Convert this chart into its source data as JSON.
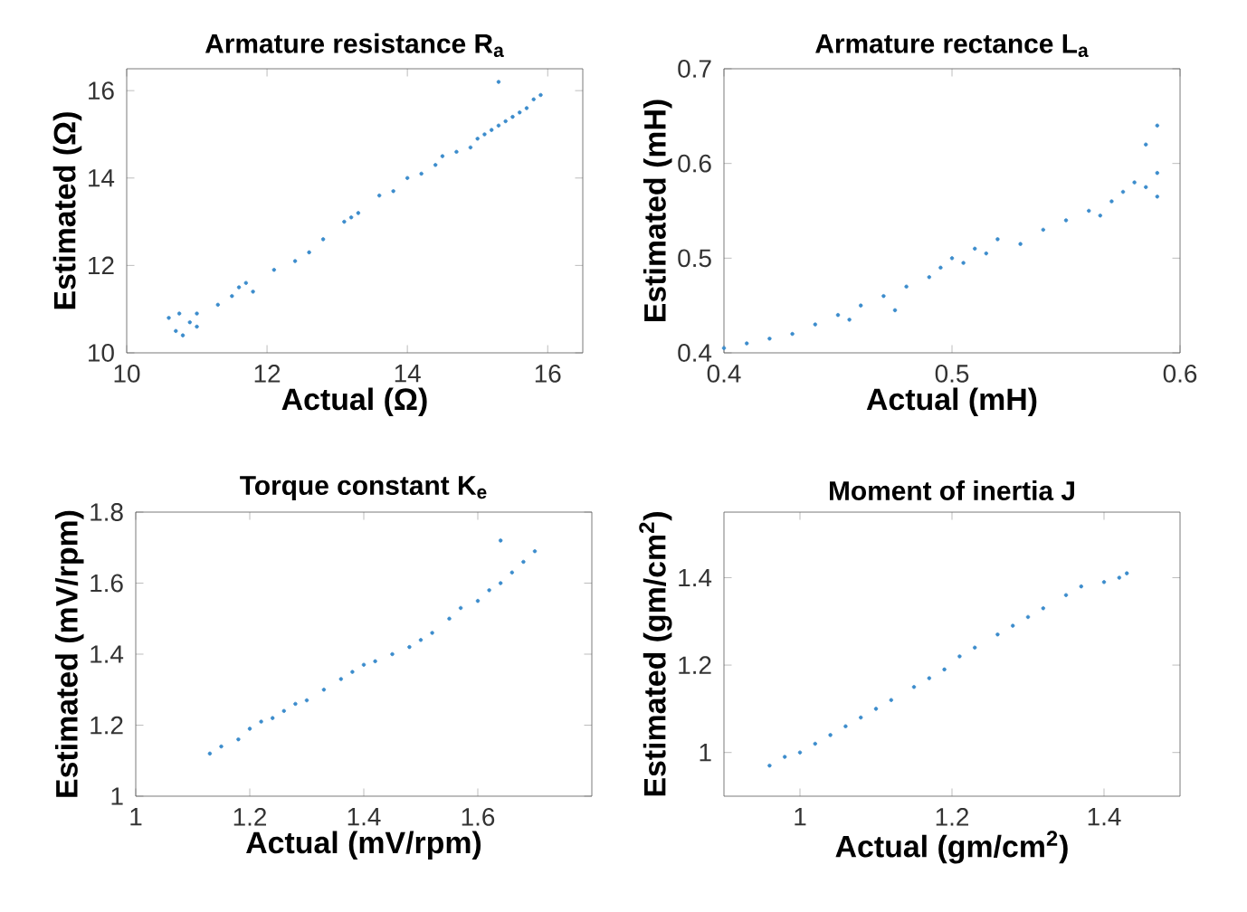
{
  "chart_data": [
    {
      "type": "scatter",
      "title": "Armature resistance R$_{a}$",
      "xlabel": "Actual (Ω)",
      "ylabel": "Estimated (Ω)",
      "xlim": [
        10,
        16.5
      ],
      "ylim": [
        10,
        16.5
      ],
      "xticks": [
        10,
        12,
        14,
        16
      ],
      "yticks": [
        10,
        12,
        14,
        16
      ],
      "color": "#3b8ccc",
      "x": [
        10.6,
        10.7,
        10.75,
        10.8,
        10.9,
        11.0,
        11.0,
        11.3,
        11.5,
        11.6,
        11.7,
        11.8,
        12.1,
        12.4,
        12.6,
        12.8,
        13.1,
        13.2,
        13.3,
        13.6,
        13.8,
        14.0,
        14.2,
        14.4,
        14.5,
        14.7,
        14.9,
        15.0,
        15.1,
        15.2,
        15.3,
        15.4,
        15.5,
        15.6,
        15.7,
        15.8,
        15.3,
        15.9
      ],
      "values": [
        10.8,
        10.5,
        10.9,
        10.4,
        10.7,
        10.6,
        10.9,
        11.1,
        11.3,
        11.5,
        11.6,
        11.4,
        11.9,
        12.1,
        12.3,
        12.6,
        13.0,
        13.1,
        13.2,
        13.6,
        13.7,
        14.0,
        14.1,
        14.3,
        14.5,
        14.6,
        14.7,
        14.9,
        15.0,
        15.1,
        15.2,
        15.3,
        15.4,
        15.5,
        15.6,
        15.8,
        16.2,
        15.9
      ]
    },
    {
      "type": "scatter",
      "title": "Armature rectance L$_{a}$",
      "xlabel": "Actual (mH)",
      "ylabel": "Estimated (mH)",
      "xlim": [
        0.4,
        0.6
      ],
      "ylim": [
        0.4,
        0.7
      ],
      "xticks": [
        0.4,
        0.5,
        0.6
      ],
      "yticks": [
        0.4,
        0.5,
        0.6,
        0.7
      ],
      "color": "#3b8ccc",
      "x": [
        0.4,
        0.41,
        0.42,
        0.43,
        0.44,
        0.45,
        0.455,
        0.46,
        0.47,
        0.475,
        0.48,
        0.49,
        0.495,
        0.5,
        0.505,
        0.51,
        0.515,
        0.52,
        0.53,
        0.54,
        0.55,
        0.56,
        0.565,
        0.57,
        0.575,
        0.58,
        0.585,
        0.59,
        0.59,
        0.585,
        0.59
      ],
      "values": [
        0.405,
        0.41,
        0.415,
        0.42,
        0.43,
        0.44,
        0.435,
        0.45,
        0.46,
        0.445,
        0.47,
        0.48,
        0.49,
        0.5,
        0.495,
        0.51,
        0.505,
        0.52,
        0.515,
        0.53,
        0.54,
        0.55,
        0.545,
        0.56,
        0.57,
        0.58,
        0.575,
        0.59,
        0.565,
        0.62,
        0.64
      ]
    },
    {
      "type": "scatter",
      "title": "Torque constant K$_{e}$",
      "xlabel": "Actual (mV/rpm)",
      "ylabel": "Estimated (mV/rpm)",
      "xlim": [
        1,
        1.8
      ],
      "ylim": [
        1,
        1.8
      ],
      "xticks": [
        1,
        1.2,
        1.4,
        1.6
      ],
      "yticks": [
        1,
        1.2,
        1.4,
        1.6,
        1.8
      ],
      "color": "#3b8ccc",
      "x": [
        1.13,
        1.15,
        1.18,
        1.2,
        1.22,
        1.24,
        1.26,
        1.28,
        1.3,
        1.33,
        1.36,
        1.38,
        1.4,
        1.42,
        1.45,
        1.48,
        1.5,
        1.52,
        1.55,
        1.57,
        1.6,
        1.62,
        1.64,
        1.66,
        1.68,
        1.7,
        1.64
      ],
      "values": [
        1.12,
        1.14,
        1.16,
        1.19,
        1.21,
        1.22,
        1.24,
        1.26,
        1.27,
        1.3,
        1.33,
        1.35,
        1.37,
        1.38,
        1.4,
        1.42,
        1.44,
        1.46,
        1.5,
        1.53,
        1.55,
        1.58,
        1.6,
        1.63,
        1.66,
        1.69,
        1.72
      ]
    },
    {
      "type": "scatter",
      "title": "Moment of inertia J",
      "xlabel": "Actual (gm/cm$^{2}$)",
      "ylabel": "Estimated (gm/cm$^{2}$)",
      "xlim": [
        0.9,
        1.5
      ],
      "ylim": [
        0.9,
        1.55
      ],
      "xticks": [
        1,
        1.2,
        1.4
      ],
      "yticks": [
        1,
        1.2,
        1.4
      ],
      "color": "#3b8ccc",
      "x": [
        0.96,
        0.98,
        1.0,
        1.02,
        1.04,
        1.06,
        1.08,
        1.1,
        1.12,
        1.15,
        1.17,
        1.19,
        1.21,
        1.23,
        1.26,
        1.28,
        1.3,
        1.32,
        1.35,
        1.37,
        1.4,
        1.42,
        1.43
      ],
      "values": [
        0.97,
        0.99,
        1.0,
        1.02,
        1.04,
        1.06,
        1.08,
        1.1,
        1.12,
        1.15,
        1.17,
        1.19,
        1.22,
        1.24,
        1.27,
        1.29,
        1.31,
        1.33,
        1.36,
        1.38,
        1.39,
        1.4,
        1.41
      ]
    }
  ]
}
